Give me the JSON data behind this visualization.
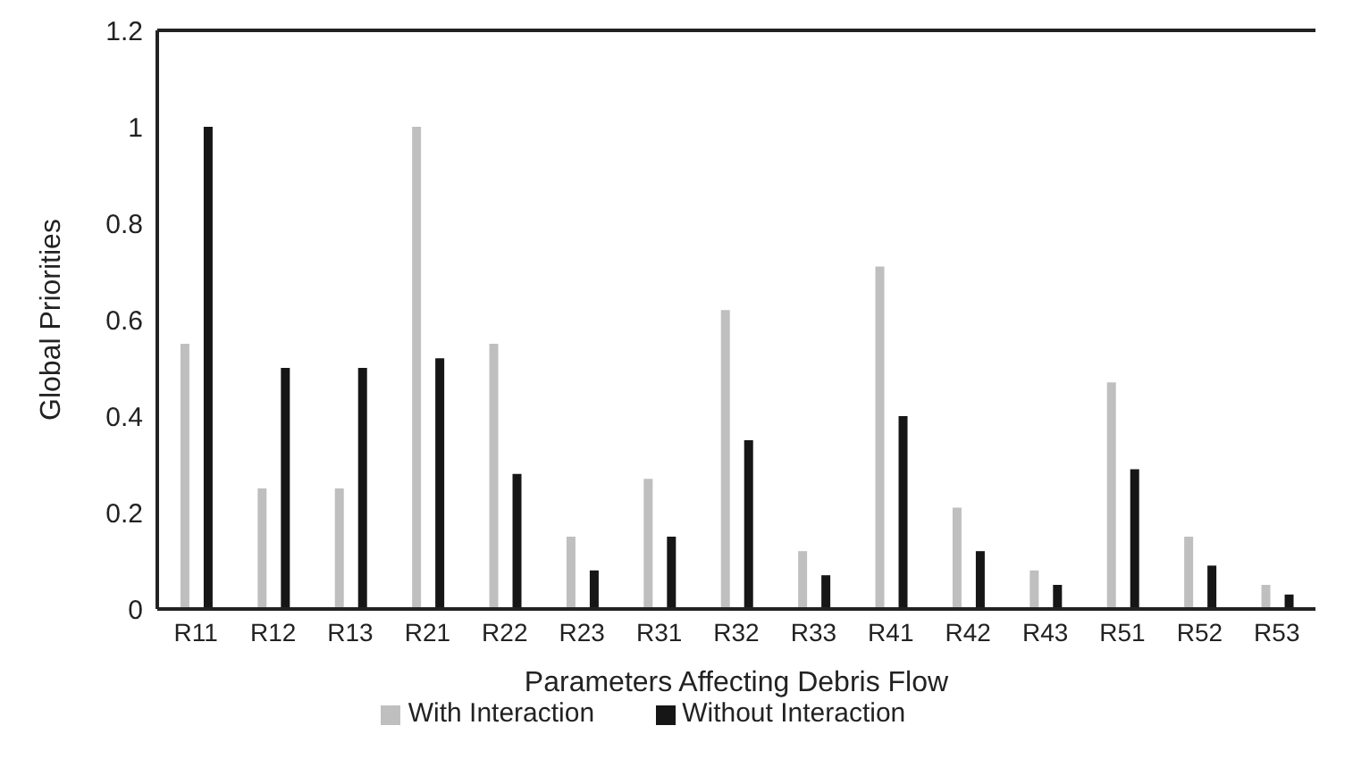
{
  "chart_data": {
    "type": "bar",
    "xlabel": "Parameters Affecting Debris Flow",
    "ylabel": "Global Priorities",
    "categories": [
      "R11",
      "R12",
      "R13",
      "R21",
      "R22",
      "R23",
      "R31",
      "R32",
      "R33",
      "R41",
      "R42",
      "R43",
      "R51",
      "R52",
      "R53"
    ],
    "series": [
      {
        "name": "With Interaction",
        "color": "#bfbfbf",
        "values": [
          0.55,
          0.25,
          0.25,
          1.0,
          0.55,
          0.15,
          0.27,
          0.62,
          0.12,
          0.71,
          0.21,
          0.08,
          0.47,
          0.15,
          0.05
        ]
      },
      {
        "name": "Without Interaction",
        "color": "#161616",
        "values": [
          1.0,
          0.5,
          0.5,
          0.52,
          0.28,
          0.08,
          0.15,
          0.35,
          0.07,
          0.4,
          0.12,
          0.05,
          0.29,
          0.09,
          0.03
        ]
      }
    ],
    "ylim": [
      0,
      1.2
    ],
    "yticks": [
      0,
      0.2,
      0.4,
      0.6,
      0.8,
      1,
      1.2
    ],
    "grid": false,
    "legend": "bottom"
  }
}
